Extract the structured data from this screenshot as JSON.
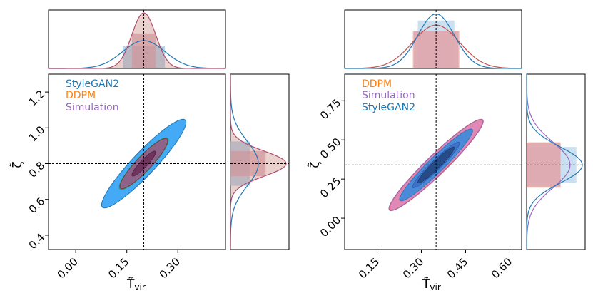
{
  "colors": {
    "StyleGAN2": "#1f77b4",
    "DDPM": "#ff7f0e",
    "Simulation": "#9467bd",
    "fill_blue": "#44aaf5",
    "fill_pink": "#d6609e",
    "fill_brown": "#c07f70",
    "marg_blue": "#a9cce6",
    "marg_orange": "#f4b7a3",
    "marg_pink": "#d9a3b3"
  },
  "chart_data": [
    {
      "type": "corner",
      "xlabel": "T̃vir",
      "ylabel": "ζ̃",
      "xlim": [
        -0.08,
        0.44
      ],
      "ylim": [
        0.32,
        1.3
      ],
      "xticks": [
        "0.00",
        "0.15",
        "0.30"
      ],
      "xtick_values": [
        0.0,
        0.15,
        0.3
      ],
      "yticks": [
        "0.4",
        "0.6",
        "0.8",
        "1.0",
        "1.2"
      ],
      "ytick_values": [
        0.4,
        0.6,
        0.8,
        1.0,
        1.2
      ],
      "truth": {
        "x": 0.2,
        "y": 0.8
      },
      "legend": [
        "StyleGAN2",
        "DDPM",
        "Simulation"
      ],
      "legend_position": "top-left",
      "series": [
        {
          "name": "StyleGAN2",
          "mean_x": 0.2,
          "mean_y": 0.8,
          "sigma_x": 0.062,
          "sigma_y": 0.124,
          "rho": 0.93
        },
        {
          "name": "DDPM",
          "mean_x": 0.2,
          "mean_y": 0.8,
          "sigma_x": 0.036,
          "sigma_y": 0.072,
          "rho": 0.91
        },
        {
          "name": "Simulation",
          "mean_x": 0.2,
          "mean_y": 0.8,
          "sigma_x": 0.035,
          "sigma_y": 0.07,
          "rho": 0.91
        }
      ]
    },
    {
      "type": "corner",
      "xlabel": "T̃vir",
      "ylabel": "ζ̃",
      "xlim": [
        0.04,
        0.64
      ],
      "ylim": [
        -0.2,
        0.92
      ],
      "xticks": [
        "0.15",
        "0.30",
        "0.45",
        "0.60"
      ],
      "xtick_values": [
        0.15,
        0.3,
        0.45,
        0.6
      ],
      "yticks": [
        "0.00",
        "0.25",
        "0.50",
        "0.75"
      ],
      "ytick_values": [
        0.0,
        0.25,
        0.5,
        0.75
      ],
      "truth": {
        "x": 0.35,
        "y": 0.34
      },
      "legend": [
        "DDPM",
        "Simulation",
        "StyleGAN2"
      ],
      "legend_position": "top-left",
      "series": [
        {
          "name": "DDPM",
          "mean_x": 0.35,
          "mean_y": 0.34,
          "sigma_x": 0.079,
          "sigma_y": 0.145,
          "rho": 0.955
        },
        {
          "name": "Simulation",
          "mean_x": 0.35,
          "mean_y": 0.34,
          "sigma_x": 0.08,
          "sigma_y": 0.146,
          "rho": 0.955
        },
        {
          "name": "StyleGAN2",
          "mean_x": 0.35,
          "mean_y": 0.34,
          "sigma_x": 0.062,
          "sigma_y": 0.115,
          "rho": 0.955
        }
      ]
    }
  ]
}
